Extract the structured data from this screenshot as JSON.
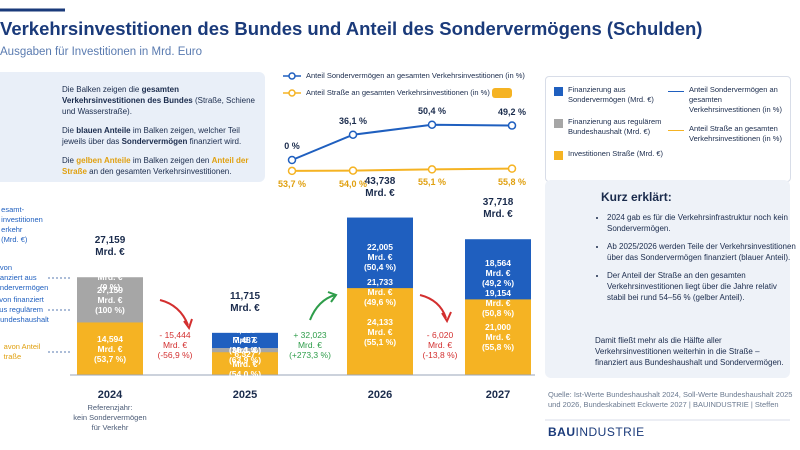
{
  "header": {
    "title": "Verkehrsinvestitionen des Bundes und Anteil des Sondervermögens (Schulden)",
    "subtitle": "Ausgaben für Investitionen in Mrd. Euro"
  },
  "info_box": {
    "paragraphs": [
      [
        "Die Balken zeigen die ",
        "gesamten Verkehrsinvestitionen des Bundes",
        " (Straße, Schiene und Wasserstraße)."
      ],
      [
        "Die ",
        "blauen Anteile",
        " im Balken zeigen, welcher Teil jeweils über das ",
        "Sondervermögen",
        " finanziert wird."
      ],
      [
        "Die ",
        "gelben Anteile",
        " im Balken zeigen den ",
        "Anteil der Straße",
        " an den gesamten Verkehrsinvestitionen."
      ]
    ]
  },
  "chart_data": [
    {
      "type": "bar",
      "categories": [
        "2024",
        "2025",
        "2026",
        "2027"
      ],
      "totals": {
        "values": [
          27.159,
          11.715,
          43.738,
          37.718
        ],
        "value_labels": [
          "27,159\nMrd. €",
          "11,715\nMrd. €",
          "43,738\nMrd. €",
          "37,718\nMrd. €"
        ]
      },
      "series": [
        {
          "name": "Finanzierung aus\nSondervermögen (Mrd. €)",
          "color": "#1f5fbf",
          "values": [
            0,
            4.228,
            22.005,
            18.564
          ],
          "value_labels": [
            "0\nMrd. €\n(0 %)",
            "4,228\nMrd. €\n(36,1 %)",
            "22,005\nMrd. €\n(50,4 %)",
            "18,564\nMrd. €\n(49,2 %)"
          ]
        },
        {
          "name": "Finanzierung aus regulärem\nBundeshaushalt (Mrd. €)",
          "color": "#a6a6a6",
          "values": [
            27.159,
            7.487,
            21.733,
            19.154
          ],
          "value_labels": [
            "27,159\nMrd. €\n(100 %)",
            "7,487\nMrd. €\n(63,9 %)",
            "21,733\nMrd. €\n(49,6 %)",
            "19,154\nMrd. €\n(50,8 %)"
          ]
        },
        {
          "name": "Investitionen Straße (Mrd. €)",
          "color": "#f5b323",
          "values": [
            14.594,
            6.327,
            24.133,
            21.0
          ],
          "value_labels": [
            "14,594\nMrd. €\n(53,7 %)",
            "6,327\nMrd. €\n(54,0 %)",
            "24,133\nMrd. €\n(55,1 %)",
            "21,000\nMrd. €\n(55,8 %)"
          ]
        }
      ],
      "row_labels": [
        "esamt-\ninvestitionen\nerkehr\n(Mrd. €)",
        "avon\nnanziert aus\nondervermögen",
        "avon finanziert\naus regulärem\nBundeshaushalt",
        "avon Anteil\ntraße"
      ],
      "changes": [
        "- 15,444\nMrd. €\n(-56,9 %)",
        "+ 32,023\nMrd. €\n(+273,3 %)",
        "- 6,020\nMrd. €\n(-13,8 %)"
      ],
      "note": "Referenzjahr:\nkein Sondervermögen\nfür Verkehr"
    },
    {
      "type": "line",
      "series": [
        {
          "name": "Anteil Sondervermögen an gesamten Verkehrsinvestitionen (in %)",
          "color": "#1f5fbf",
          "values": [
            0,
            36.1,
            50.4,
            49.2
          ],
          "value_labels": [
            "0 %",
            "36,1 %",
            "50,4 %",
            "49,2 %"
          ]
        },
        {
          "name": "Anteil Straße an gesamten Verkehrsinvestitionen (in %)",
          "color": "#f5b323",
          "values": [
            53.7,
            54.0,
            55.1,
            55.8
          ],
          "value_labels": [
            "53,7 %",
            "54,0 %",
            "55,1 %",
            "55,8 %"
          ]
        }
      ]
    }
  ],
  "explainer": {
    "title": "Kurz erklärt:",
    "bullets": [
      "2024 gab es für die Verkehrsinfrastruktur noch kein Sondervermögen.",
      "Ab 2025/2026 werden Teile der Verkehrsinvestitionen über das Sondervermögen finanziert (blauer Anteil).",
      "Der Anteil der Straße an den gesamten Verkehrsinvestitionen liegt über die Jahre relativ stabil bei rund 54–56 % (gelber Anteil)."
    ],
    "conclusion": "Damit fließt mehr als die Hälfte aller Verkehrsinvestitionen weiterhin in die Straße – finanziert aus Bundeshaushalt und Sondervermögen."
  },
  "source": "Quelle: Ist-Werte Bundeshaushalt 2024, Soll-Werte Bundeshaushalt 2025 und 2026, Bundeskabinett Eckwerte 2027 | BAUINDUSTRIE | Steffen",
  "logo": {
    "bold": "BAU",
    "rest": "INDUSTRIE"
  }
}
